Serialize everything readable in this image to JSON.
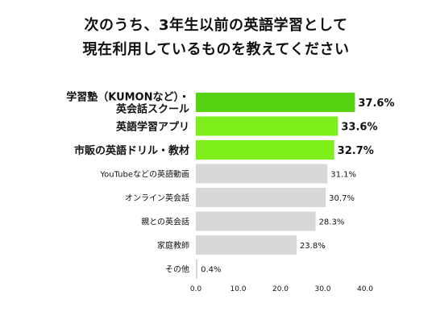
{
  "chart_data": {
    "type": "bar",
    "orientation": "horizontal",
    "title_lines": [
      "次のうち、3年生以前の英語学習として",
      "現在利用しているものを教えてください"
    ],
    "categories": [
      [
        "学習塾（KUMONなど）・",
        "英会話スクール"
      ],
      [
        "英語学習アプリ"
      ],
      [
        "市販の英語ドリル・教材"
      ],
      [
        "YouTubeなどの英語動画"
      ],
      [
        "オンライン英会話"
      ],
      [
        "親との英会話"
      ],
      [
        "家庭教師"
      ],
      [
        "その他"
      ]
    ],
    "values": [
      37.6,
      33.6,
      32.7,
      31.1,
      30.7,
      28.3,
      23.8,
      0.4
    ],
    "value_labels": [
      "37.6%",
      "33.6%",
      "32.7%",
      "31.1%",
      "30.7%",
      "28.3%",
      "23.8%",
      "0.4%"
    ],
    "highlight_count": 3,
    "xlim": [
      0,
      40
    ],
    "xticks": [
      "0.0",
      "10.0",
      "20.0",
      "30.0",
      "40.0"
    ],
    "grid": false,
    "colors": {
      "top1": "#57d411",
      "top2": "#7df01c",
      "top3": "#7df01c",
      "other": "#d8d8d8"
    }
  }
}
